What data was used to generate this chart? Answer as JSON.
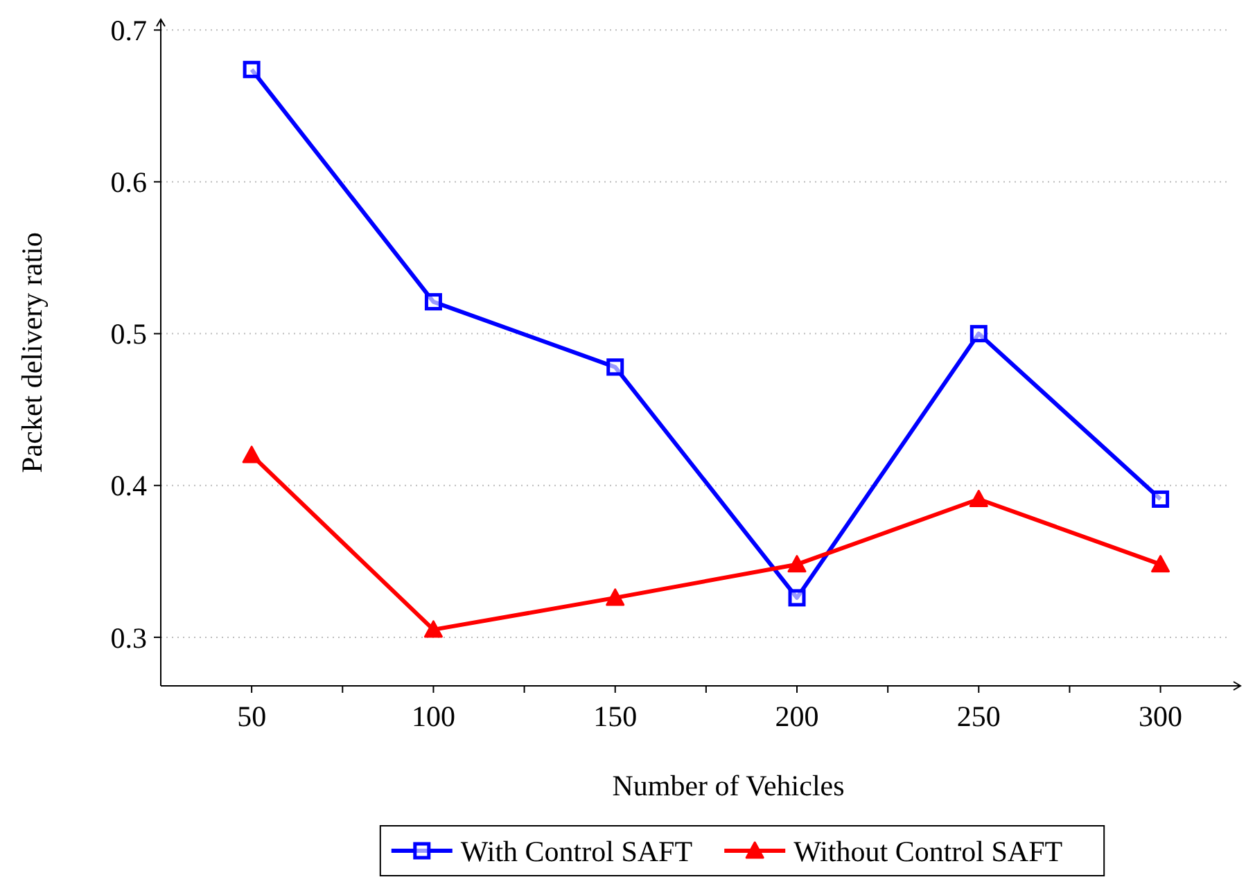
{
  "chart_data": {
    "type": "line",
    "xlabel": "Number of Vehicles",
    "ylabel": "Packet delivery ratio",
    "x": [
      50,
      100,
      150,
      200,
      250,
      300
    ],
    "series": [
      {
        "name": "With Control SAFT",
        "color": "#0000ff",
        "marker": "square",
        "values": [
          0.674,
          0.521,
          0.478,
          0.326,
          0.5,
          0.391
        ]
      },
      {
        "name": "Without Control SAFT",
        "color": "#ff0000",
        "marker": "triangle",
        "values": [
          0.42,
          0.305,
          0.326,
          0.348,
          0.391,
          0.348
        ]
      }
    ],
    "xlim": [
      25,
      322
    ],
    "ylim": [
      0.268,
      0.707
    ],
    "xticks": [
      50,
      {
        "value": 75,
        "label": null
      },
      100,
      {
        "value": 125,
        "label": null
      },
      150,
      {
        "value": 175,
        "label": null
      },
      200,
      {
        "value": 225,
        "label": null
      },
      250,
      {
        "value": 275,
        "label": null
      },
      300
    ],
    "yticks": [
      0.3,
      0.4,
      0.5,
      0.6,
      0.7
    ],
    "grid": "y",
    "legend": "bottom",
    "line_style": "solid"
  }
}
